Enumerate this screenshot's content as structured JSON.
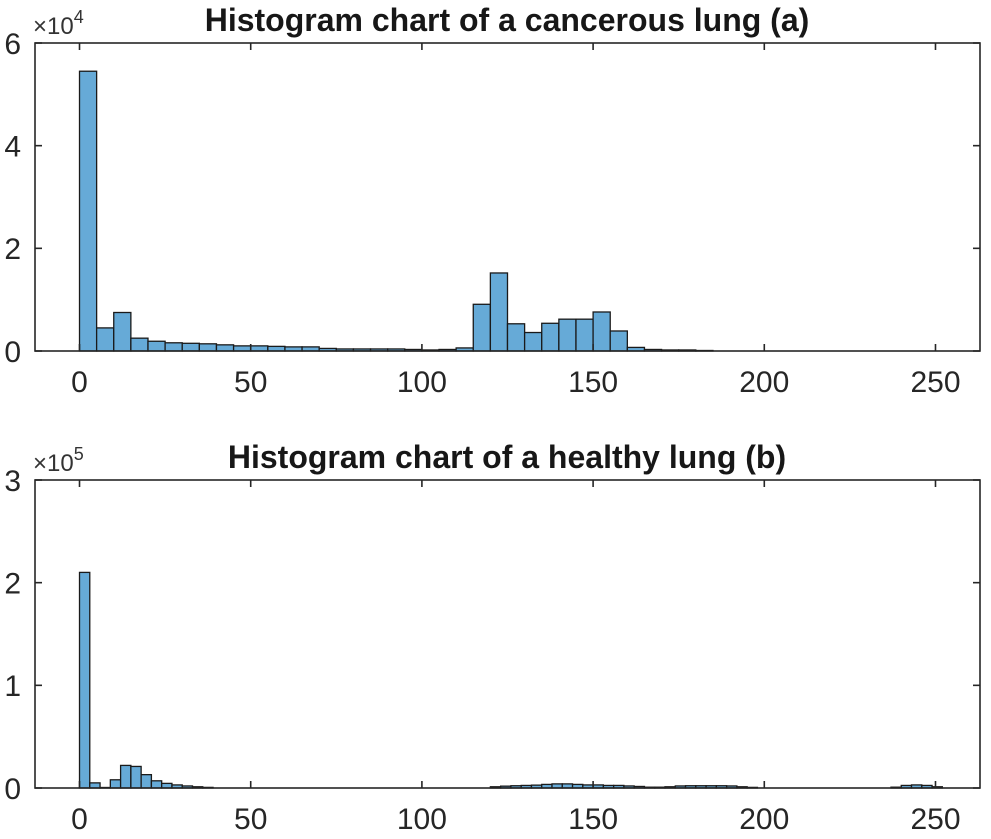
{
  "page": {
    "background": "#ffffff",
    "text_color": "#262626"
  },
  "chart_data": [
    {
      "type": "bar",
      "subtype": "histogram",
      "title": "Histogram chart of a cancerous lung (a)",
      "y_offset_label": "×10",
      "y_offset_exponent": "4",
      "y_units_note": "counts in units of 1e4",
      "bin_start": 0,
      "bin_width": 5,
      "x_ticks": [
        0,
        50,
        100,
        150,
        200,
        250
      ],
      "y_ticks": [
        0,
        2,
        4,
        6
      ],
      "xlim": [
        -13,
        263
      ],
      "ylim": [
        0,
        6
      ],
      "grid": false,
      "legend": null,
      "bar_color": "#66aad7",
      "bar_edge_color": "#1a1a1a",
      "axis_color": "#262626",
      "values": [
        5.45,
        0.45,
        0.75,
        0.25,
        0.19,
        0.16,
        0.15,
        0.14,
        0.12,
        0.1,
        0.1,
        0.09,
        0.08,
        0.08,
        0.05,
        0.04,
        0.04,
        0.04,
        0.04,
        0.03,
        0.02,
        0.03,
        0.06,
        0.91,
        1.52,
        0.53,
        0.36,
        0.54,
        0.62,
        0.62,
        0.76,
        0.39,
        0.07,
        0.03,
        0.02,
        0.02,
        0.01,
        0,
        0,
        0,
        0,
        0,
        0,
        0,
        0,
        0,
        0,
        0,
        0,
        0,
        0,
        0
      ]
    },
    {
      "type": "bar",
      "subtype": "histogram",
      "title": "Histogram chart of a healthy lung (b)",
      "y_offset_label": "×10",
      "y_offset_exponent": "5",
      "y_units_note": "counts in units of 1e5",
      "bin_start": 0,
      "bin_width": 3,
      "x_ticks": [
        0,
        50,
        100,
        150,
        200,
        250
      ],
      "y_ticks": [
        0,
        1,
        2,
        3
      ],
      "xlim": [
        -13,
        263
      ],
      "ylim": [
        0,
        3
      ],
      "grid": false,
      "legend": null,
      "bar_color": "#66aad7",
      "bar_edge_color": "#1a1a1a",
      "axis_color": "#262626",
      "values": [
        2.1,
        0.05,
        0.005,
        0.08,
        0.22,
        0.21,
        0.13,
        0.07,
        0.045,
        0.03,
        0.02,
        0.012,
        0.006,
        0,
        0,
        0,
        0,
        0,
        0,
        0,
        0,
        0,
        0,
        0,
        0,
        0,
        0,
        0,
        0,
        0,
        0,
        0,
        0,
        0,
        0,
        0,
        0,
        0,
        0,
        0,
        0.012,
        0.018,
        0.022,
        0.025,
        0.028,
        0.035,
        0.04,
        0.04,
        0.035,
        0.03,
        0.03,
        0.025,
        0.025,
        0.02,
        0.015,
        0.008,
        0.008,
        0.012,
        0.02,
        0.022,
        0.022,
        0.022,
        0.022,
        0.02,
        0.012,
        0.006,
        0,
        0,
        0,
        0,
        0,
        0,
        0,
        0,
        0,
        0,
        0,
        0,
        0,
        0.008,
        0.025,
        0.03,
        0.025,
        0.012
      ]
    }
  ]
}
